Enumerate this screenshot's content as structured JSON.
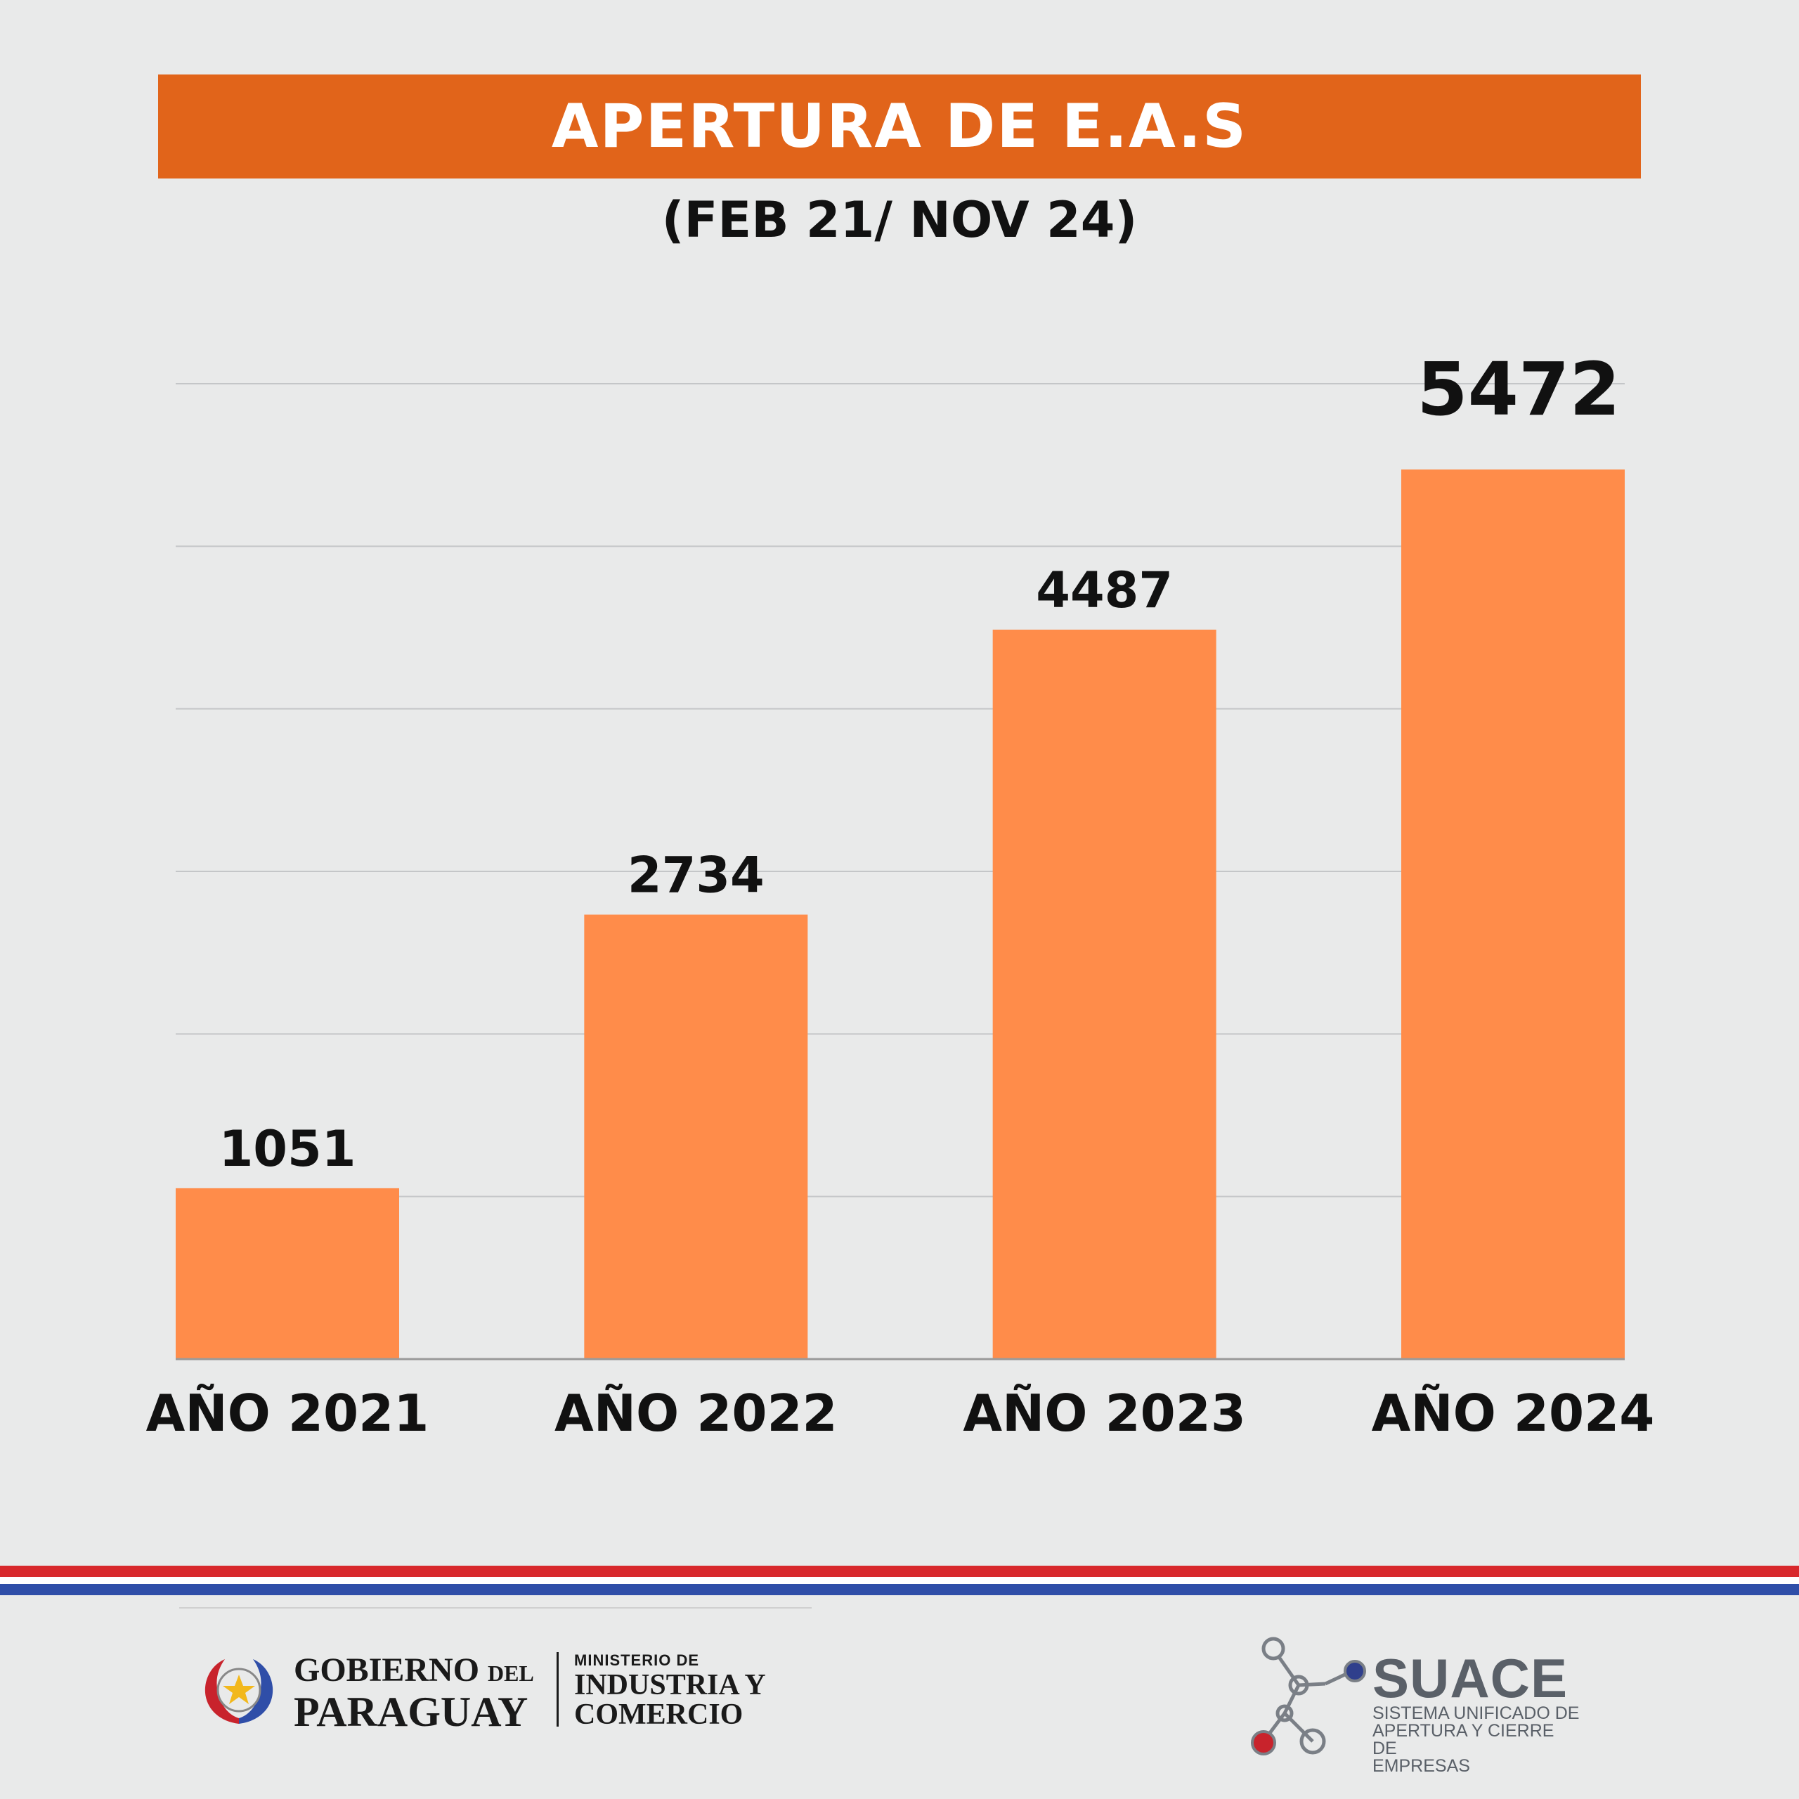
{
  "header": {
    "title": "APERTURA DE E.A.S",
    "subtitle": "(FEB 21/ NOV 24)"
  },
  "colors": {
    "title_bar": "#e1641a",
    "bar": "#ff8c4a",
    "flag_red": "#d8282c",
    "flag_blue": "#2f4ea8"
  },
  "chart_data": {
    "type": "bar",
    "categories": [
      "AÑO 2021",
      "AÑO 2022",
      "AÑO 2023",
      "AÑO 2024"
    ],
    "values": [
      1051,
      2734,
      4487,
      5472
    ],
    "data_labels": [
      "1051",
      "2734",
      "4487",
      "5472"
    ],
    "title": "APERTURA DE E.A.S",
    "subtitle": "(FEB 21/ NOV 24)",
    "ylim": [
      0,
      6000
    ],
    "grid": true,
    "y_axis_labels": false
  },
  "footer": {
    "gov_line1_main": "GOBIERNO",
    "gov_line1_small": "DEL",
    "gov_line2": "PARAGUAY",
    "ministry_line1": "MINISTERIO DE",
    "ministry_line2": "INDUSTRIA Y",
    "ministry_line3": "COMERCIO",
    "suace_name": "SUACE",
    "suace_sub1": "SISTEMA UNIFICADO DE",
    "suace_sub2": "APERTURA Y CIERRE DE",
    "suace_sub3": "EMPRESAS"
  }
}
